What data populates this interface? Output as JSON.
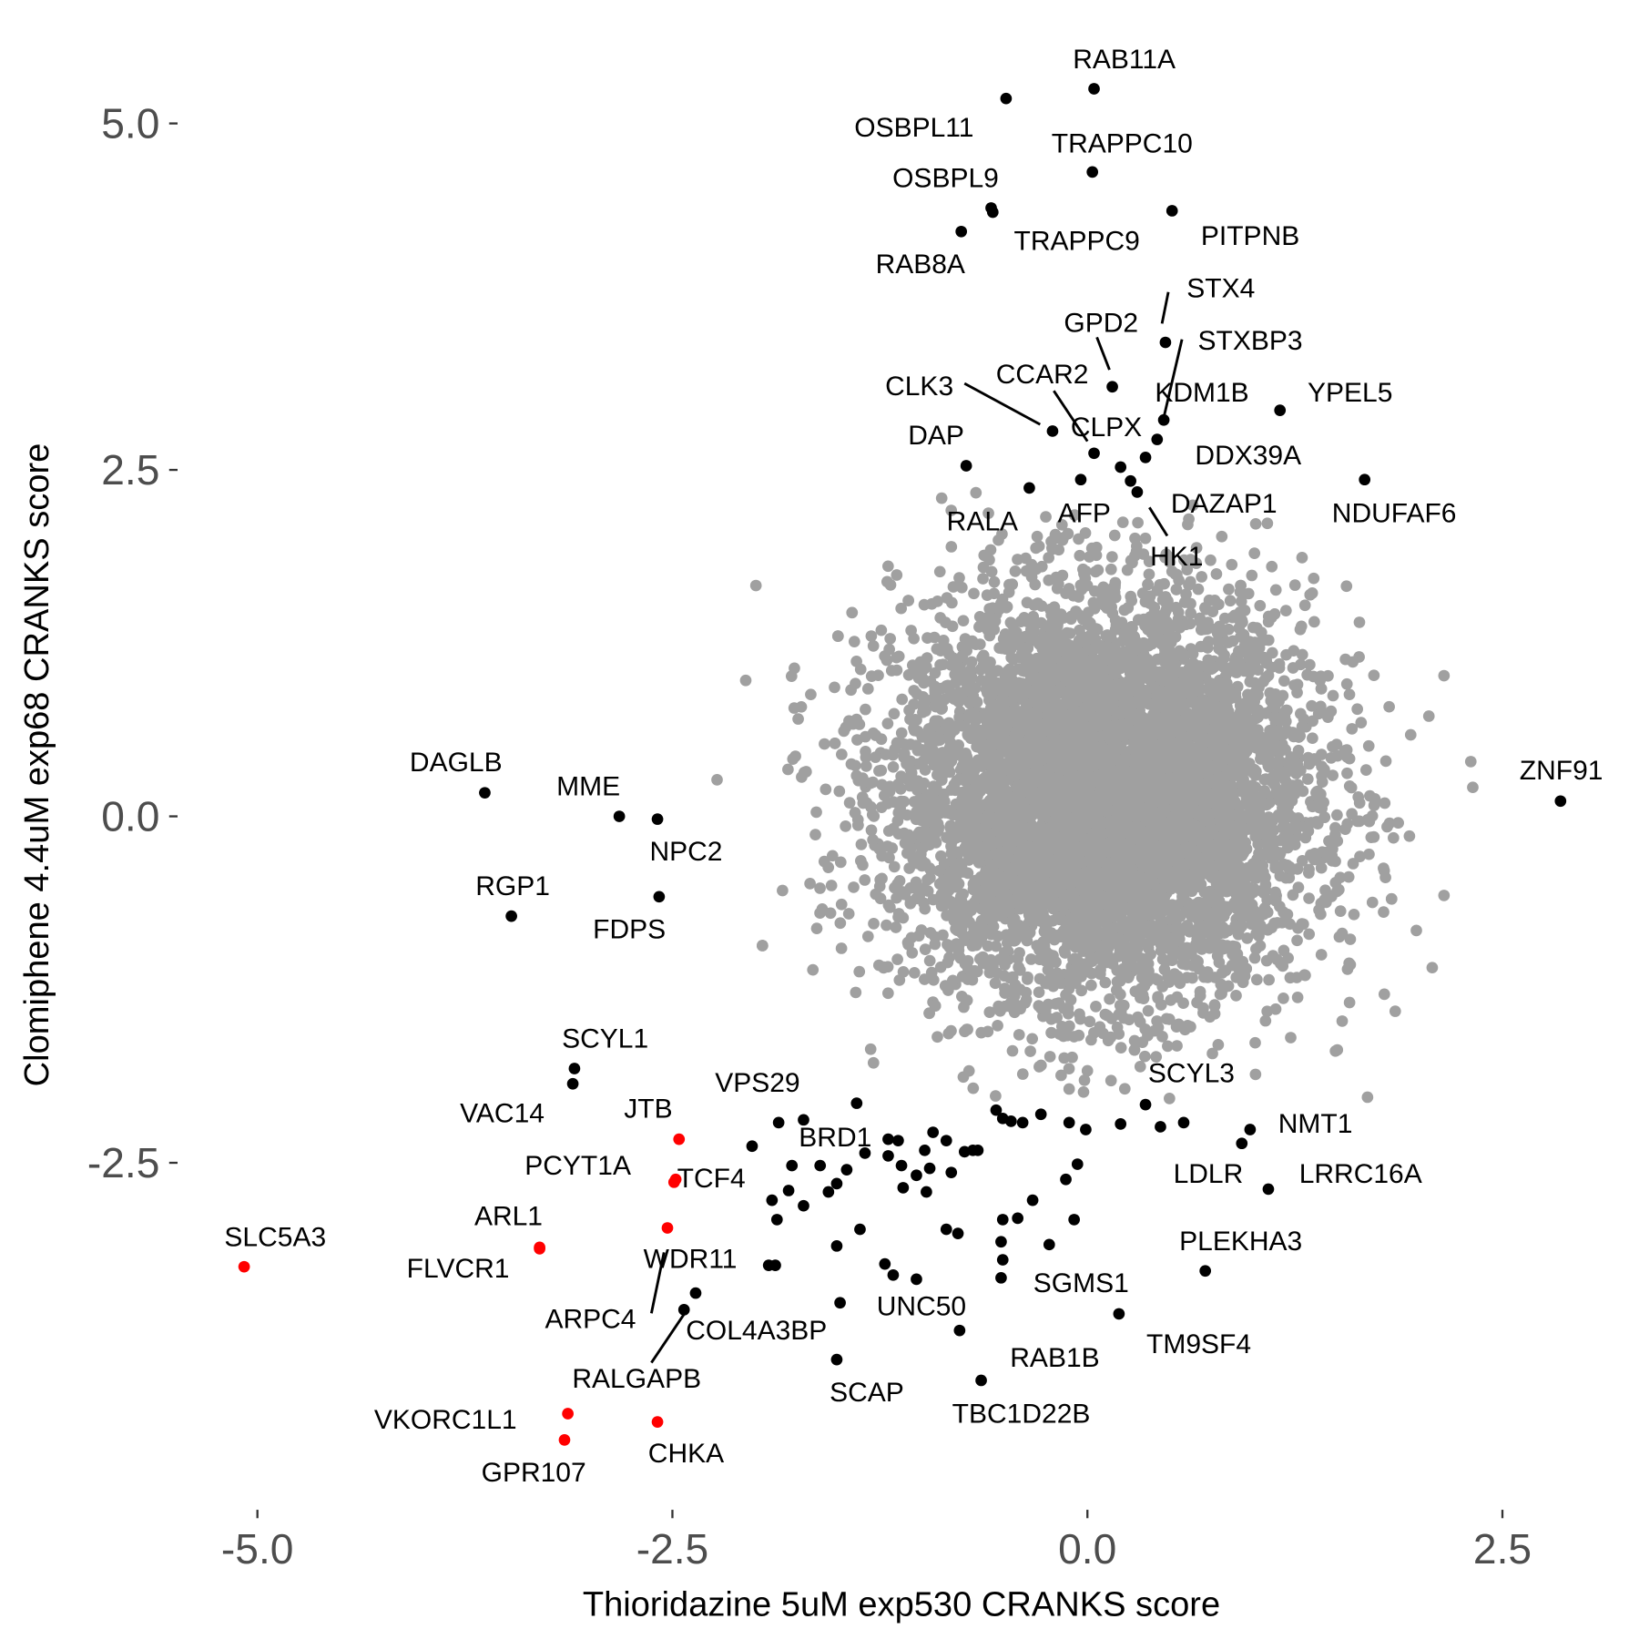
{
  "chart_data": {
    "type": "scatter",
    "title": "",
    "xlabel": "Thioridazine 5uM exp530 CRANKS score",
    "ylabel": "Clomiphene 4.4uM exp68 CRANKS score",
    "xlim": [
      -5.3,
      3.1
    ],
    "ylim": [
      -4.95,
      5.55
    ],
    "xticks": [
      -5.0,
      -2.5,
      0.0,
      2.5
    ],
    "xtick_labels": [
      "-5.0",
      "-2.5",
      "0.0",
      "2.5"
    ],
    "yticks": [
      -2.5,
      0.0,
      2.5,
      5.0
    ],
    "ytick_labels": [
      "-2.5",
      "0.0",
      "2.5",
      "5.0"
    ],
    "grid": false,
    "colors": {
      "background": "#A0A0A0",
      "hit": "#000000",
      "highlight": "#FF0000"
    },
    "background_distribution": {
      "n": 7000,
      "mean_x": 0.1,
      "mean_y": 0.15,
      "sd_x": 0.62,
      "sd_y": 0.72,
      "color": "#A0A0A0"
    },
    "labeled_points": [
      {
        "label": "RAB11A",
        "x": 0.04,
        "y": 5.25,
        "color": "#000000"
      },
      {
        "label": "OSBPL11",
        "x": -0.49,
        "y": 5.18,
        "color": "#000000"
      },
      {
        "label": "TRAPPC10",
        "x": 0.03,
        "y": 4.65,
        "color": "#000000"
      },
      {
        "label": "OSBPL9",
        "x": -0.58,
        "y": 4.39,
        "color": "#000000"
      },
      {
        "label": "TRAPPC9",
        "x": -0.57,
        "y": 4.36,
        "color": "#000000"
      },
      {
        "label": "PITPNB",
        "x": 0.51,
        "y": 4.37,
        "color": "#000000"
      },
      {
        "label": "RAB8A",
        "x": -0.76,
        "y": 4.22,
        "color": "#000000"
      },
      {
        "label": "STX4",
        "x": 0.47,
        "y": 3.42,
        "color": "#000000"
      },
      {
        "label": "STXBP3",
        "x": 0.46,
        "y": 2.86,
        "color": "#000000"
      },
      {
        "label": "GPD2",
        "x": 0.15,
        "y": 3.1,
        "color": "#000000"
      },
      {
        "label": "KDM1B",
        "x": 0.42,
        "y": 2.72,
        "color": "#000000"
      },
      {
        "label": "CLK3",
        "x": -0.21,
        "y": 2.78,
        "color": "#000000"
      },
      {
        "label": "CCAR2",
        "x": 0.04,
        "y": 2.62,
        "color": "#000000"
      },
      {
        "label": "CLPX",
        "x": 0.2,
        "y": 2.52,
        "color": "#000000"
      },
      {
        "label": "DDX39A",
        "x": 0.35,
        "y": 2.59,
        "color": "#000000"
      },
      {
        "label": "YPEL5",
        "x": 1.16,
        "y": 2.93,
        "color": "#000000"
      },
      {
        "label": "DAP",
        "x": -0.73,
        "y": 2.53,
        "color": "#000000"
      },
      {
        "label": "DAZAP1",
        "x": 0.26,
        "y": 2.42,
        "color": "#000000"
      },
      {
        "label": "HK1",
        "x": 0.3,
        "y": 2.34,
        "color": "#000000"
      },
      {
        "label": "AFP",
        "x": -0.04,
        "y": 2.43,
        "color": "#000000"
      },
      {
        "label": "RALA",
        "x": -0.35,
        "y": 2.37,
        "color": "#000000"
      },
      {
        "label": "NDUFAF6",
        "x": 1.67,
        "y": 2.43,
        "color": "#000000"
      },
      {
        "label": "ZNF91",
        "x": 2.85,
        "y": 0.11,
        "color": "#000000"
      },
      {
        "label": "DAGLB",
        "x": -3.63,
        "y": 0.17,
        "color": "#000000"
      },
      {
        "label": "MME",
        "x": -2.82,
        "y": 0.0,
        "color": "#000000"
      },
      {
        "label": "NPC2",
        "x": -2.59,
        "y": -0.02,
        "color": "#000000"
      },
      {
        "label": "FDPS",
        "x": -2.58,
        "y": -0.58,
        "color": "#000000"
      },
      {
        "label": "RGP1",
        "x": -3.47,
        "y": -0.72,
        "color": "#000000"
      },
      {
        "label": "SCYL1",
        "x": -3.09,
        "y": -1.82,
        "color": "#000000"
      },
      {
        "label": "VAC14",
        "x": -3.1,
        "y": -1.93,
        "color": "#000000"
      },
      {
        "label": "JTB",
        "x": -2.46,
        "y": -2.33,
        "color": "#FF0000"
      },
      {
        "label": "PCYT1A",
        "x": -2.48,
        "y": -2.62,
        "color": "#FF0000"
      },
      {
        "label": "TCF4",
        "x": -2.49,
        "y": -2.64,
        "color": "#FF0000"
      },
      {
        "label": "ARPC4",
        "x": -2.53,
        "y": -2.97,
        "color": "#FF0000"
      },
      {
        "label": "ARL1",
        "x": -3.3,
        "y": -3.11,
        "color": "#FF0000"
      },
      {
        "label": "FLVCR1",
        "x": -3.3,
        "y": -3.12,
        "color": "#FF0000"
      },
      {
        "label": "SLC5A3",
        "x": -5.08,
        "y": -3.25,
        "color": "#FF0000"
      },
      {
        "label": "VKORC1L1",
        "x": -3.13,
        "y": -4.31,
        "color": "#FF0000"
      },
      {
        "label": "GPR107",
        "x": -3.15,
        "y": -4.5,
        "color": "#FF0000"
      },
      {
        "label": "CHKA",
        "x": -2.59,
        "y": -4.37,
        "color": "#FF0000"
      },
      {
        "label": "WDR11",
        "x": -1.92,
        "y": -3.24,
        "color": "#000000"
      },
      {
        "label": "COL4A3BP",
        "x": -2.36,
        "y": -3.44,
        "color": "#000000"
      },
      {
        "label": "RALGAPB",
        "x": -2.43,
        "y": -3.56,
        "color": "#000000"
      },
      {
        "label": "VPS29",
        "x": -1.39,
        "y": -2.07,
        "color": "#000000"
      },
      {
        "label": "BRD1",
        "x": -1.34,
        "y": -2.43,
        "color": "#000000"
      },
      {
        "label": "SCYL3",
        "x": 0.35,
        "y": -2.08,
        "color": "#000000"
      },
      {
        "label": "NMT1",
        "x": 0.98,
        "y": -2.26,
        "color": "#000000"
      },
      {
        "label": "LDLR",
        "x": 0.93,
        "y": -2.36,
        "color": "#000000"
      },
      {
        "label": "LRRC16A",
        "x": 1.09,
        "y": -2.69,
        "color": "#000000"
      },
      {
        "label": "PLEKHA3",
        "x": 0.71,
        "y": -3.28,
        "color": "#000000"
      },
      {
        "label": "TM9SF4",
        "x": 0.19,
        "y": -3.59,
        "color": "#000000"
      },
      {
        "label": "SGMS1",
        "x": -0.52,
        "y": -3.33,
        "color": "#000000"
      },
      {
        "label": "UNC50",
        "x": -1.49,
        "y": -3.51,
        "color": "#000000"
      },
      {
        "label": "RAB1B",
        "x": -0.77,
        "y": -3.71,
        "color": "#000000"
      },
      {
        "label": "SCAP",
        "x": -1.51,
        "y": -3.92,
        "color": "#000000"
      },
      {
        "label": "TBC1D22B",
        "x": -0.64,
        "y": -4.07,
        "color": "#000000"
      }
    ],
    "unlabeled_hits": [
      [
        -2.02,
        -2.38
      ],
      [
        -1.86,
        -2.21
      ],
      [
        -1.71,
        -2.19
      ],
      [
        -1.78,
        -2.52
      ],
      [
        -1.9,
        -2.77
      ],
      [
        -1.87,
        -2.91
      ],
      [
        -1.8,
        -2.7
      ],
      [
        -1.71,
        -2.81
      ],
      [
        -1.61,
        -2.52
      ],
      [
        -1.51,
        -2.65
      ],
      [
        -1.56,
        -2.71
      ],
      [
        -1.45,
        -2.55
      ],
      [
        -1.37,
        -2.98
      ],
      [
        -1.51,
        -3.1
      ],
      [
        -1.22,
        -3.23
      ],
      [
        -1.17,
        -3.31
      ],
      [
        -1.03,
        -3.34
      ],
      [
        -1.14,
        -2.34
      ],
      [
        -1.12,
        -2.52
      ],
      [
        -1.11,
        -2.68
      ],
      [
        -0.98,
        -2.41
      ],
      [
        -0.93,
        -2.28
      ],
      [
        -0.85,
        -2.34
      ],
      [
        -1.03,
        -2.59
      ],
      [
        -0.97,
        -2.71
      ],
      [
        -0.95,
        -2.54
      ],
      [
        -0.82,
        -2.57
      ],
      [
        -0.74,
        -2.42
      ],
      [
        -0.69,
        -2.41
      ],
      [
        -0.85,
        -2.98
      ],
      [
        -0.78,
        -3.01
      ],
      [
        -0.55,
        -2.12
      ],
      [
        -0.51,
        -2.18
      ],
      [
        -0.46,
        -2.2
      ],
      [
        -0.39,
        -2.21
      ],
      [
        -0.28,
        -2.15
      ],
      [
        -0.11,
        -2.21
      ],
      [
        -0.01,
        -2.26
      ],
      [
        0.2,
        -2.22
      ],
      [
        0.44,
        -2.24
      ],
      [
        0.58,
        -2.21
      ],
      [
        -0.06,
        -2.51
      ],
      [
        -0.13,
        -2.62
      ],
      [
        -0.33,
        -2.77
      ],
      [
        -0.51,
        -2.91
      ],
      [
        -0.42,
        -2.9
      ],
      [
        -0.08,
        -2.91
      ],
      [
        -0.51,
        -3.2
      ],
      [
        -0.23,
        -3.09
      ],
      [
        -0.52,
        -3.07
      ],
      [
        -1.2,
        -2.33
      ],
      [
        -0.66,
        -2.41
      ],
      [
        -1.88,
        -3.24
      ],
      [
        -1.2,
        -2.45
      ]
    ]
  }
}
